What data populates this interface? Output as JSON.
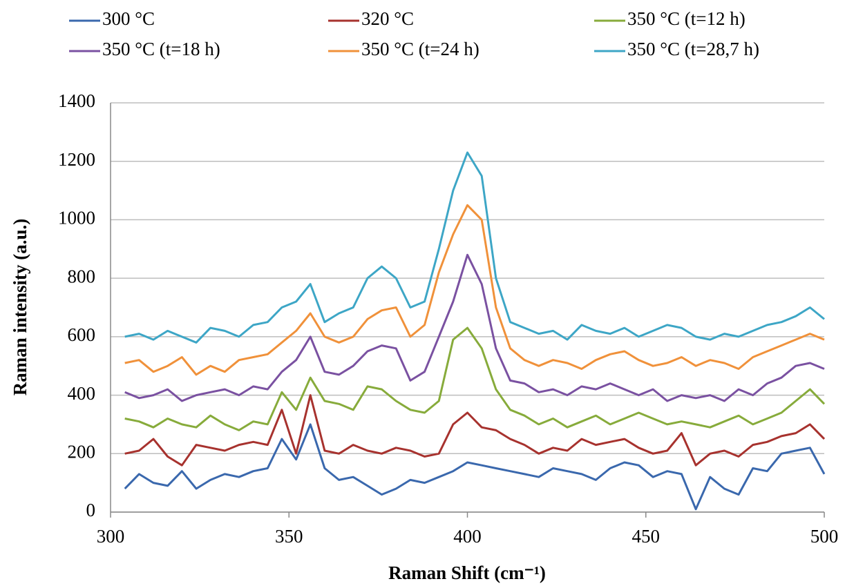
{
  "chart_data": {
    "type": "line",
    "xlabel": "Raman Shift (cm⁻¹)",
    "ylabel": "Raman intensity (a.u.)",
    "x": [
      304,
      308,
      312,
      316,
      320,
      324,
      328,
      332,
      336,
      340,
      344,
      348,
      352,
      356,
      360,
      364,
      368,
      372,
      376,
      380,
      384,
      388,
      392,
      396,
      400,
      404,
      408,
      412,
      416,
      420,
      424,
      428,
      432,
      436,
      440,
      444,
      448,
      452,
      456,
      460,
      464,
      468,
      472,
      476,
      480,
      484,
      488,
      492,
      496,
      500
    ],
    "series": [
      {
        "name": "300 °C",
        "color": "#3a68ad",
        "values": [
          80,
          130,
          100,
          90,
          140,
          80,
          110,
          130,
          120,
          140,
          150,
          250,
          180,
          300,
          150,
          110,
          120,
          90,
          60,
          80,
          110,
          100,
          120,
          140,
          170,
          160,
          150,
          140,
          130,
          120,
          150,
          140,
          130,
          110,
          150,
          170,
          160,
          120,
          140,
          130,
          10,
          120,
          80,
          60,
          150,
          140,
          200,
          210,
          220,
          130
        ]
      },
      {
        "name": "320 °C",
        "color": "#a7322e",
        "values": [
          200,
          210,
          250,
          190,
          160,
          230,
          220,
          210,
          230,
          240,
          230,
          350,
          200,
          400,
          210,
          200,
          230,
          210,
          200,
          220,
          210,
          190,
          200,
          300,
          340,
          290,
          280,
          250,
          230,
          200,
          220,
          210,
          250,
          230,
          240,
          250,
          220,
          200,
          210,
          270,
          160,
          200,
          210,
          190,
          230,
          240,
          260,
          270,
          300,
          250
        ]
      },
      {
        "name": "350 °C (t=12 h)",
        "color": "#87ab3b",
        "values": [
          320,
          310,
          290,
          320,
          300,
          290,
          330,
          300,
          280,
          310,
          300,
          410,
          350,
          460,
          380,
          370,
          350,
          430,
          420,
          380,
          350,
          340,
          380,
          590,
          630,
          560,
          420,
          350,
          330,
          300,
          320,
          290,
          310,
          330,
          300,
          320,
          340,
          320,
          300,
          310,
          300,
          290,
          310,
          330,
          300,
          320,
          340,
          380,
          420,
          370
        ]
      },
      {
        "name": "350 °C (t=18 h)",
        "color": "#7a51a1",
        "values": [
          410,
          390,
          400,
          420,
          380,
          400,
          410,
          420,
          400,
          430,
          420,
          480,
          520,
          600,
          480,
          470,
          500,
          550,
          570,
          560,
          450,
          480,
          600,
          720,
          880,
          780,
          560,
          450,
          440,
          410,
          420,
          400,
          430,
          420,
          440,
          420,
          400,
          420,
          380,
          400,
          390,
          400,
          380,
          420,
          400,
          440,
          460,
          500,
          510,
          490
        ]
      },
      {
        "name": "350 °C (t=24 h)",
        "color": "#f0913a",
        "values": [
          510,
          520,
          480,
          500,
          530,
          470,
          500,
          480,
          520,
          530,
          540,
          580,
          620,
          680,
          600,
          580,
          600,
          660,
          690,
          700,
          600,
          640,
          820,
          950,
          1050,
          1000,
          700,
          560,
          520,
          500,
          520,
          510,
          490,
          520,
          540,
          550,
          520,
          500,
          510,
          530,
          500,
          520,
          510,
          490,
          530,
          550,
          570,
          590,
          610,
          590
        ]
      },
      {
        "name": "350 °C (t=28,7 h)",
        "color": "#3da6c6",
        "values": [
          600,
          610,
          590,
          620,
          600,
          580,
          630,
          620,
          600,
          640,
          650,
          700,
          720,
          780,
          650,
          680,
          700,
          800,
          840,
          800,
          700,
          720,
          900,
          1100,
          1230,
          1150,
          800,
          650,
          630,
          610,
          620,
          590,
          640,
          620,
          610,
          630,
          600,
          620,
          640,
          630,
          600,
          590,
          610,
          600,
          620,
          640,
          650,
          670,
          700,
          660
        ]
      }
    ],
    "xlim": [
      300,
      500
    ],
    "xticks": [
      300,
      350,
      400,
      450,
      500
    ],
    "ylim": [
      0,
      1400
    ],
    "yticks": [
      0,
      200,
      400,
      600,
      800,
      1000,
      1200,
      1400
    ],
    "grid": true,
    "legend": "top"
  }
}
